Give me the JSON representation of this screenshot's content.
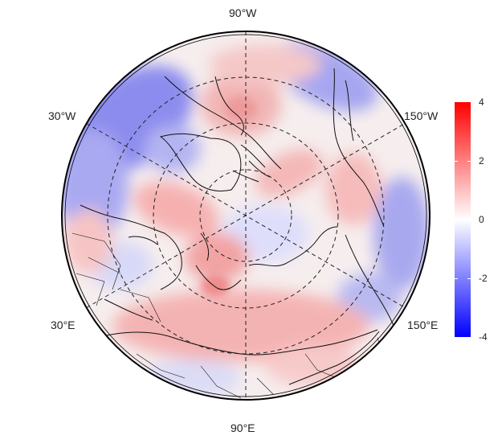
{
  "map": {
    "projection": "north-polar-stereographic",
    "graticule_labels": {
      "top": "90°W",
      "bottom": "90°E",
      "upper_left": "30°W",
      "upper_right": "150°W",
      "lower_left": "30°E",
      "lower_right": "150°E"
    }
  },
  "colorbar": {
    "ticks": [
      "4",
      "2",
      "0",
      "-2",
      "-4"
    ],
    "max_color": "#ff0000",
    "mid_color": "#ffffff",
    "min_color": "#0000ff"
  }
}
